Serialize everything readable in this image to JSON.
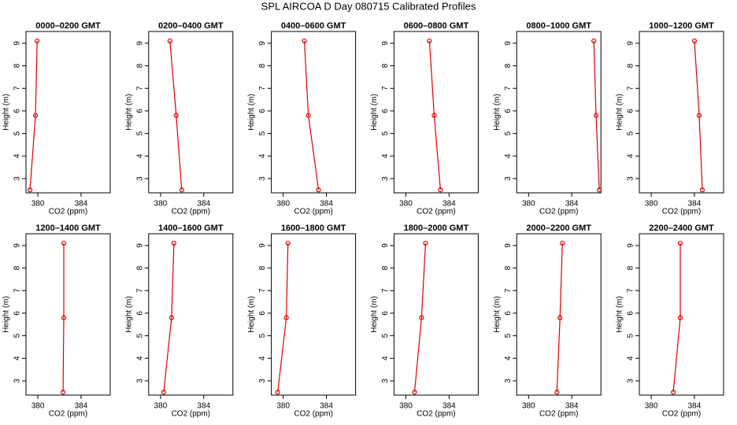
{
  "title": "SPL AIRCOA D  Day 080715  Calibrated Profiles",
  "chart_data": [
    {
      "type": "line",
      "title": "0000–0200 GMT",
      "x_label": "CO2 (ppm)",
      "y_label": "Height (m)",
      "color": "#dd0000",
      "x": [
        379.27,
        379.78,
        379.93
      ],
      "values": [
        2.5,
        5.8,
        9.1
      ],
      "xlim": [
        378.9,
        386.7
      ],
      "ylim": [
        2.37,
        9.52
      ],
      "xticks": [
        380,
        384
      ],
      "yticks": [
        3,
        4,
        5,
        6,
        7,
        8,
        9
      ]
    },
    {
      "type": "line",
      "title": "0200–0400 GMT",
      "x_label": "CO2 (ppm)",
      "y_label": "Height (m)",
      "color": "#dd0000",
      "x": [
        381.96,
        381.45,
        380.87
      ],
      "values": [
        2.5,
        5.8,
        9.1
      ],
      "xlim": [
        378.9,
        386.7
      ],
      "ylim": [
        2.37,
        9.52
      ],
      "xticks": [
        380,
        384
      ],
      "yticks": [
        3,
        4,
        5,
        6,
        7,
        8,
        9
      ]
    },
    {
      "type": "line",
      "title": "0400–0600 GMT",
      "x_label": "CO2 (ppm)",
      "y_label": "Height (m)",
      "color": "#dd0000",
      "x": [
        383.27,
        382.33,
        381.96
      ],
      "values": [
        2.5,
        5.8,
        9.1
      ],
      "xlim": [
        378.9,
        386.7
      ],
      "ylim": [
        2.37,
        9.52
      ],
      "xticks": [
        380,
        384
      ],
      "yticks": [
        3,
        4,
        5,
        6,
        7,
        8,
        9
      ]
    },
    {
      "type": "line",
      "title": "0600–0800 GMT",
      "x_label": "CO2 (ppm)",
      "y_label": "Height (m)",
      "color": "#dd0000",
      "x": [
        383.2,
        382.62,
        382.18
      ],
      "values": [
        2.5,
        5.8,
        9.1
      ],
      "xlim": [
        378.9,
        386.7
      ],
      "ylim": [
        2.37,
        9.52
      ],
      "xticks": [
        380,
        384
      ],
      "yticks": [
        3,
        4,
        5,
        6,
        7,
        8,
        9
      ]
    },
    {
      "type": "line",
      "title": "0800–1000 GMT",
      "x_label": "CO2 (ppm)",
      "y_label": "Height (m)",
      "color": "#dd0000",
      "x": [
        386.55,
        386.25,
        386.04
      ],
      "values": [
        2.5,
        5.8,
        9.1
      ],
      "xlim": [
        378.9,
        386.7
      ],
      "ylim": [
        2.37,
        9.52
      ],
      "xticks": [
        380,
        384
      ],
      "yticks": [
        3,
        4,
        5,
        6,
        7,
        8,
        9
      ]
    },
    {
      "type": "line",
      "title": "1000–1200 GMT",
      "x_label": "CO2 (ppm)",
      "y_label": "Height (m)",
      "color": "#dd0000",
      "x": [
        384.73,
        384.44,
        384.0
      ],
      "values": [
        2.5,
        5.8,
        9.1
      ],
      "xlim": [
        378.9,
        386.7
      ],
      "ylim": [
        2.37,
        9.52
      ],
      "xticks": [
        380,
        384
      ],
      "yticks": [
        3,
        4,
        5,
        6,
        7,
        8,
        9
      ]
    },
    {
      "type": "line",
      "title": "1200–1400 GMT",
      "x_label": "CO2 (ppm)",
      "y_label": "Height (m)",
      "color": "#dd0000",
      "x": [
        382.33,
        382.4,
        382.4
      ],
      "values": [
        2.5,
        5.8,
        9.1
      ],
      "xlim": [
        378.9,
        386.7
      ],
      "ylim": [
        2.37,
        9.52
      ],
      "xticks": [
        380,
        384
      ],
      "yticks": [
        3,
        4,
        5,
        6,
        7,
        8,
        9
      ]
    },
    {
      "type": "line",
      "title": "1400–1600 GMT",
      "x_label": "CO2 (ppm)",
      "y_label": "Height (m)",
      "color": "#dd0000",
      "x": [
        380.29,
        381.02,
        381.24
      ],
      "values": [
        2.5,
        5.8,
        9.1
      ],
      "xlim": [
        378.9,
        386.7
      ],
      "ylim": [
        2.37,
        9.52
      ],
      "xticks": [
        380,
        384
      ],
      "yticks": [
        3,
        4,
        5,
        6,
        7,
        8,
        9
      ]
    },
    {
      "type": "line",
      "title": "1600–1800 GMT",
      "x_label": "CO2 (ppm)",
      "y_label": "Height (m)",
      "color": "#dd0000",
      "x": [
        379.49,
        380.29,
        380.44
      ],
      "values": [
        2.5,
        5.8,
        9.1
      ],
      "xlim": [
        378.9,
        386.7
      ],
      "ylim": [
        2.37,
        9.52
      ],
      "xticks": [
        380,
        384
      ],
      "yticks": [
        3,
        4,
        5,
        6,
        7,
        8,
        9
      ]
    },
    {
      "type": "line",
      "title": "1800–2000 GMT",
      "x_label": "CO2 (ppm)",
      "y_label": "Height (m)",
      "color": "#dd0000",
      "x": [
        380.8,
        381.45,
        381.82
      ],
      "values": [
        2.5,
        5.8,
        9.1
      ],
      "xlim": [
        378.9,
        386.7
      ],
      "ylim": [
        2.37,
        9.52
      ],
      "xticks": [
        380,
        384
      ],
      "yticks": [
        3,
        4,
        5,
        6,
        7,
        8,
        9
      ]
    },
    {
      "type": "line",
      "title": "2000–2200 GMT",
      "x_label": "CO2 (ppm)",
      "y_label": "Height (m)",
      "color": "#dd0000",
      "x": [
        382.62,
        382.91,
        383.13
      ],
      "values": [
        2.5,
        5.8,
        9.1
      ],
      "xlim": [
        378.9,
        386.7
      ],
      "ylim": [
        2.37,
        9.52
      ],
      "xticks": [
        380,
        384
      ],
      "yticks": [
        3,
        4,
        5,
        6,
        7,
        8,
        9
      ]
    },
    {
      "type": "line",
      "title": "2200–2400 GMT",
      "x_label": "CO2 (ppm)",
      "y_label": "Height (m)",
      "color": "#dd0000",
      "x": [
        382.04,
        382.69,
        382.69
      ],
      "values": [
        2.5,
        5.8,
        9.1
      ],
      "xlim": [
        378.9,
        386.7
      ],
      "ylim": [
        2.37,
        9.52
      ],
      "xticks": [
        380,
        384
      ],
      "yticks": [
        3,
        4,
        5,
        6,
        7,
        8,
        9
      ]
    }
  ]
}
